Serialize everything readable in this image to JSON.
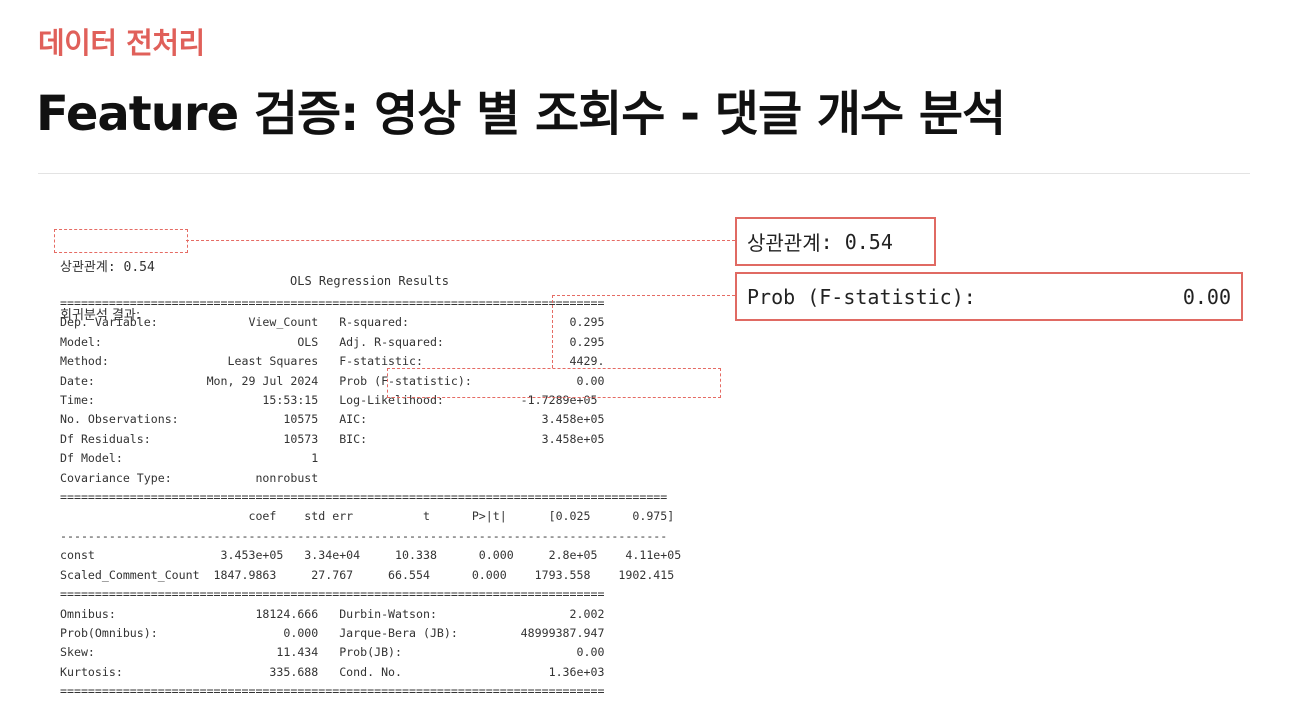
{
  "header": {
    "section_label": "데이터 전처리",
    "title": "Feature 검증: 영상 별 조회수 - 댓글 개수 분석"
  },
  "output": {
    "correlation_label": "상관관계",
    "correlation_value": ": 0.54",
    "regression_label": "회귀분석 결과:",
    "ols_title": "OLS Regression Results",
    "lines": [
      "==============================================================================",
      "Dep. Variable:             View_Count   R-squared:                       0.295",
      "Model:                            OLS   Adj. R-squared:                  0.295",
      "Method:                 Least Squares   F-statistic:                     4429.",
      "Date:                Mon, 29 Jul 2024   Prob (F-statistic):               0.00",
      "Time:                        15:53:15   Log-Likelihood:           -1.7289e+05",
      "No. Observations:               10575   AIC:                         3.458e+05",
      "Df Residuals:                   10573   BIC:                         3.458e+05",
      "Df Model:                           1                                         ",
      "Covariance Type:            nonrobust                                         ",
      "=======================================================================================",
      "                           coef    std err          t      P>|t|      [0.025      0.975]",
      "---------------------------------------------------------------------------------------",
      "const                  3.453e+05   3.34e+04     10.338      0.000     2.8e+05    4.11e+05",
      "Scaled_Comment_Count  1847.9863     27.767     66.554      0.000    1793.558    1902.415",
      "==============================================================================",
      "Omnibus:                    18124.666   Durbin-Watson:                   2.002",
      "Prob(Omnibus):                  0.000   Jarque-Bera (JB):         48999387.947",
      "Skew:                          11.434   Prob(JB):                         0.00",
      "Kurtosis:                     335.688   Cond. No.                     1.36e+03",
      "=============================================================================="
    ]
  },
  "callouts": {
    "correlation_label": "상관관계",
    "correlation_value": ": 0.54",
    "fstat_label": "Prob (F-statistic):",
    "fstat_value": "0.00"
  },
  "colors": {
    "accent": "#e0605a",
    "highlight_row": "#eeeeee"
  }
}
